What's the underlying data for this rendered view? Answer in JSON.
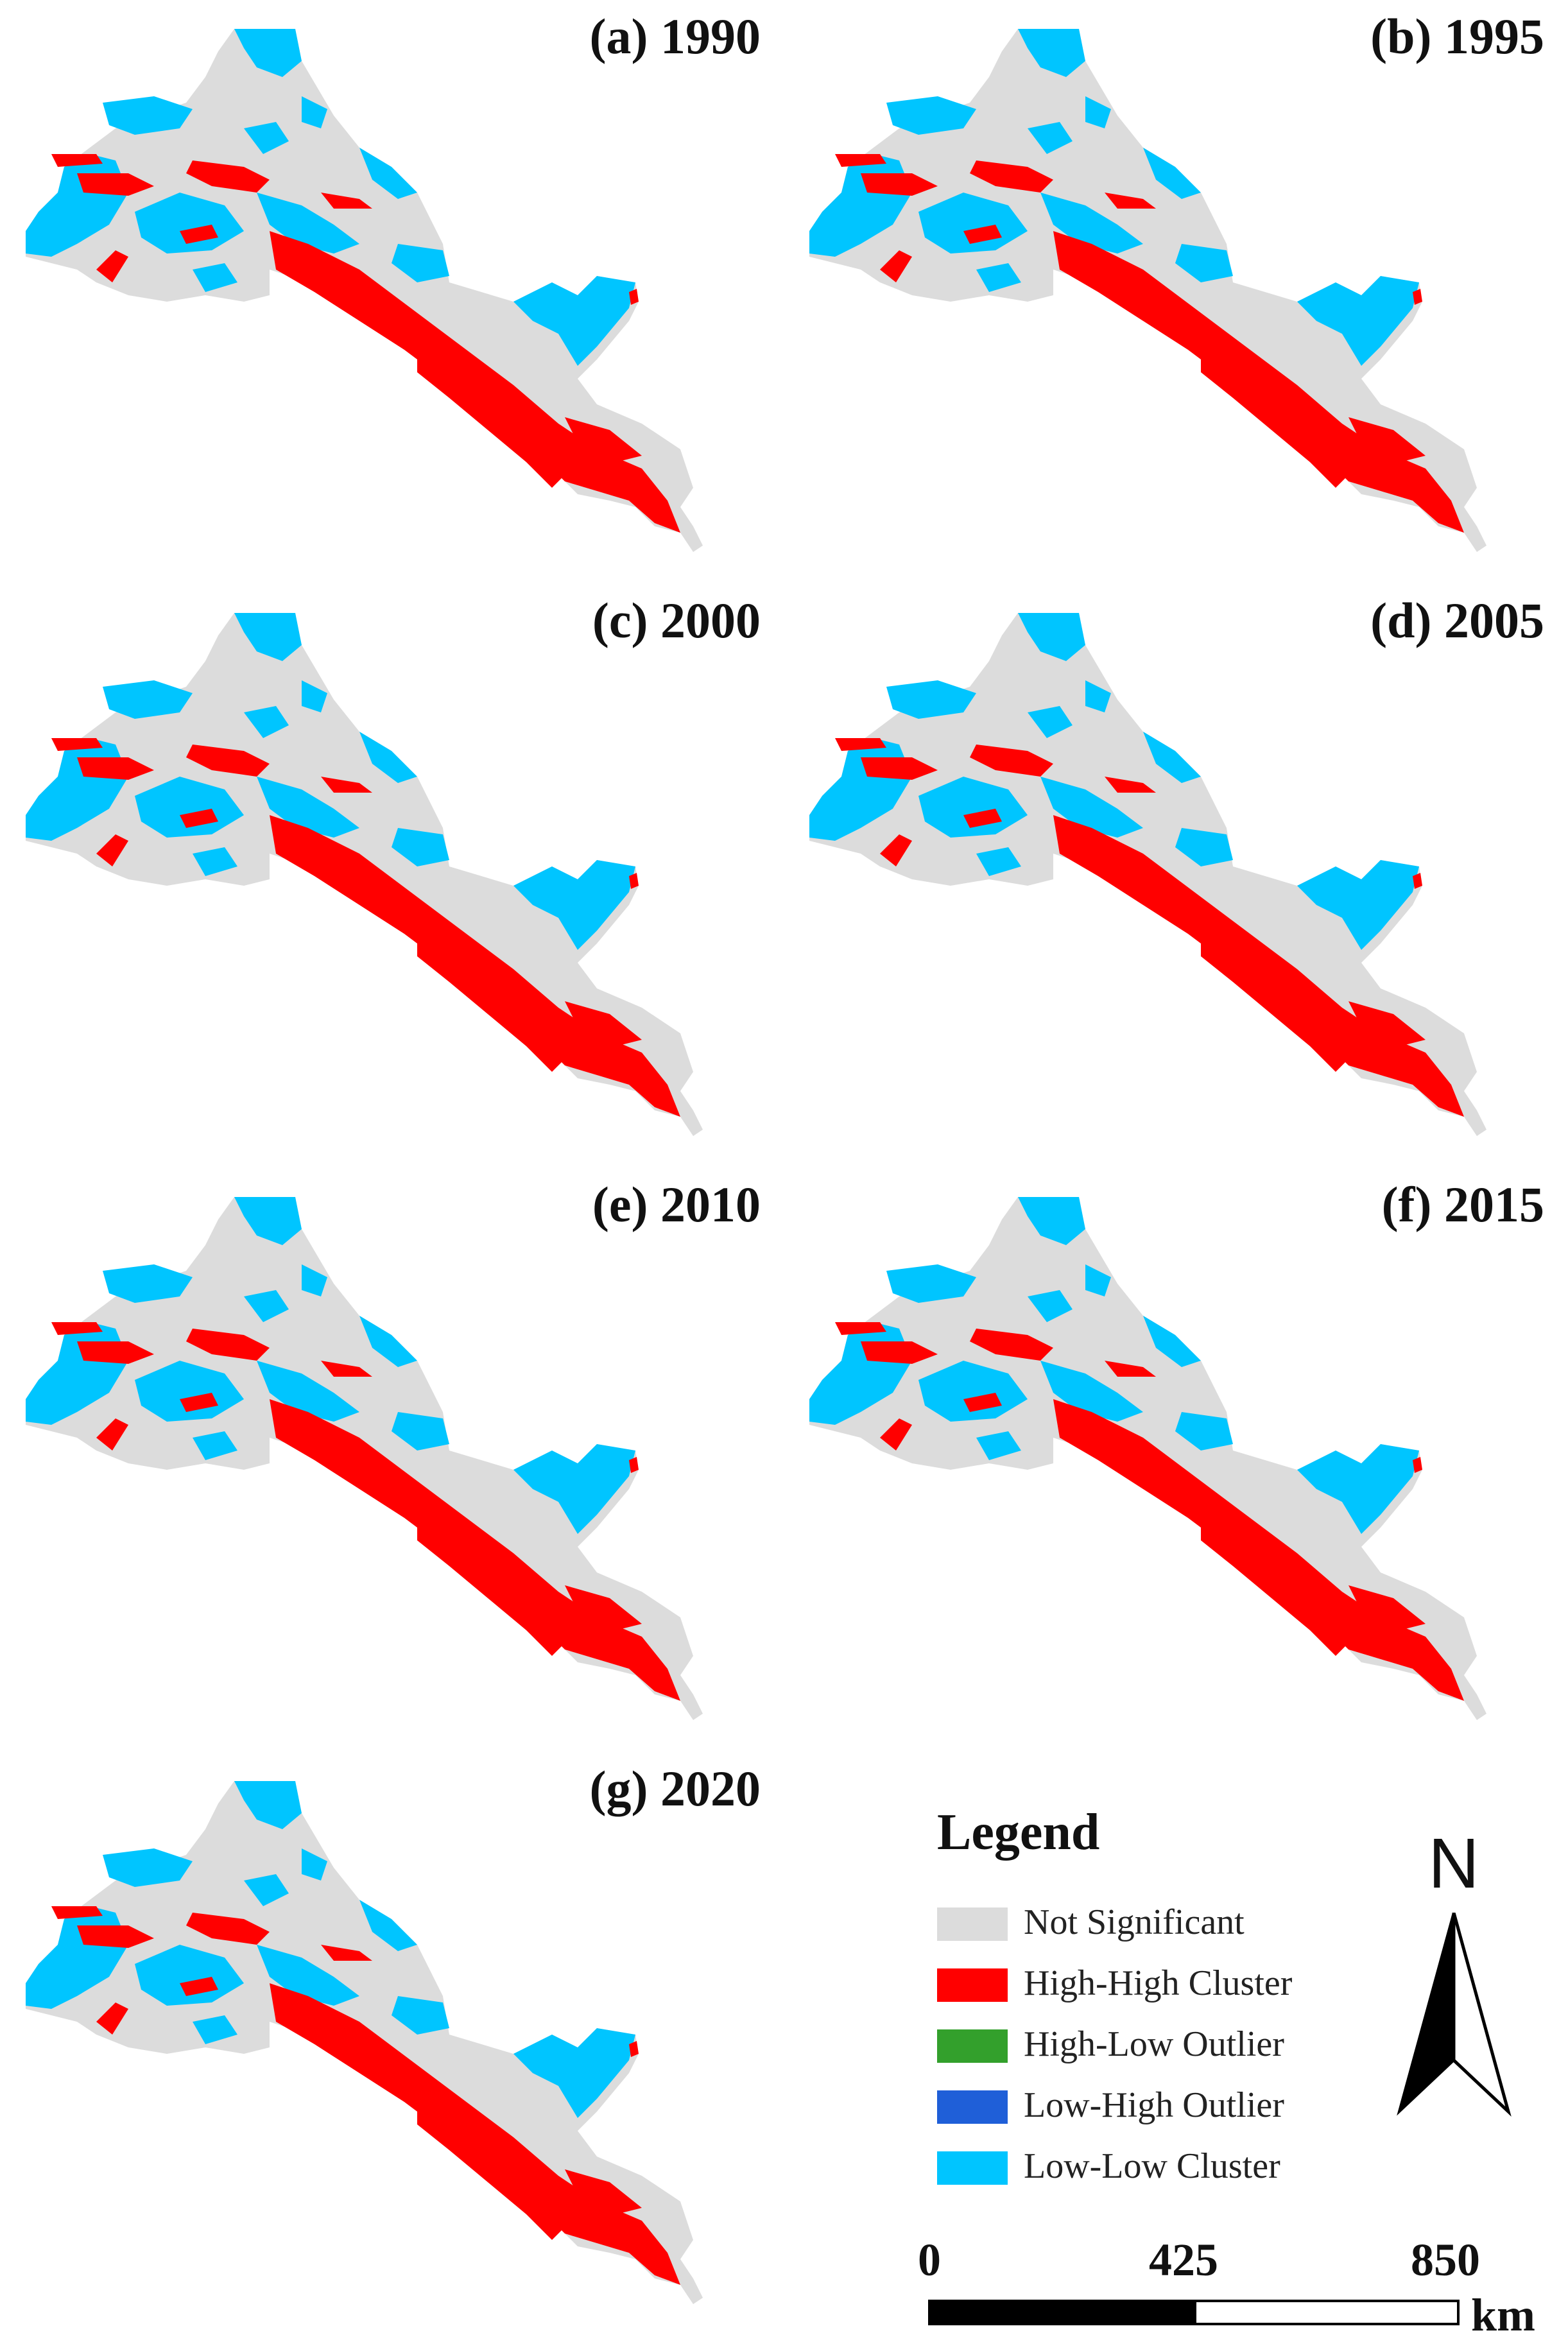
{
  "panels": [
    {
      "title": "(a) 1990"
    },
    {
      "title": "(b) 1995"
    },
    {
      "title": "(c) 2000"
    },
    {
      "title": "(d) 2005"
    },
    {
      "title": "(e) 2010"
    },
    {
      "title": "(f) 2015"
    },
    {
      "title": "(g) 2020"
    }
  ],
  "legend": {
    "title": "Legend",
    "items": [
      {
        "label": "Not Significant",
        "color": "#dcdcdc"
      },
      {
        "label": "High-High Cluster",
        "color": "#ff0000"
      },
      {
        "label": "High-Low Outlier",
        "color": "#33a02c"
      },
      {
        "label": "Low-High Outlier",
        "color": "#1f5fd8"
      },
      {
        "label": "Low-Low Cluster",
        "color": "#00c5ff"
      }
    ]
  },
  "north_arrow": {
    "label": "N",
    "icon": "north-arrow-icon"
  },
  "scale_bar": {
    "ticks": [
      "0",
      "425",
      "850"
    ],
    "unit": "km"
  },
  "colors": {
    "not_significant": "#dcdcdc",
    "high_high": "#ff0000",
    "low_low": "#00c5ff"
  }
}
